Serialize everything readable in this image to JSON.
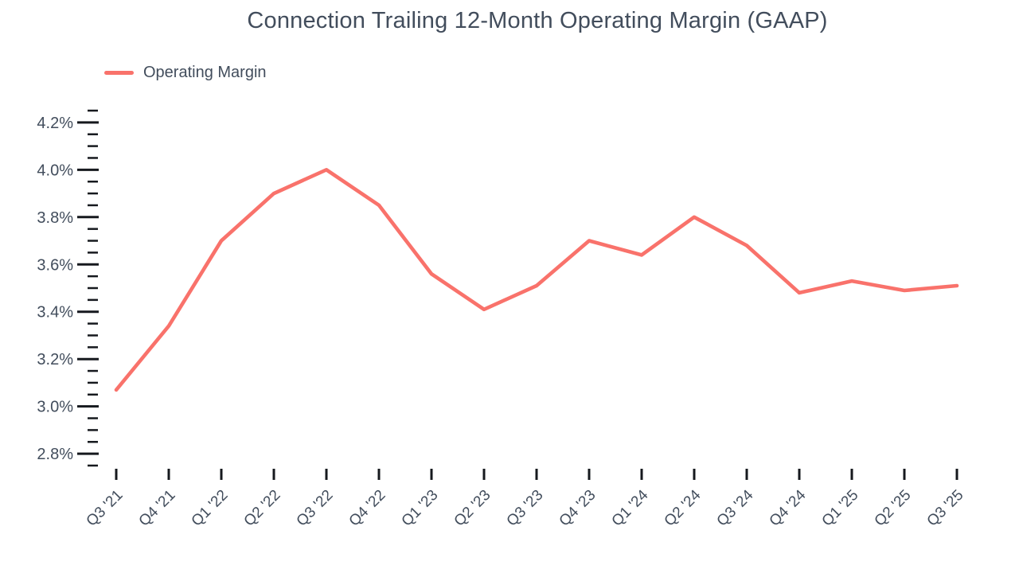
{
  "colors": {
    "line": "#F9726B",
    "text": "#424D5C",
    "tick": "#16191E",
    "background": "#FFFFFF"
  },
  "chart_data": {
    "type": "line",
    "title": "Connection Trailing 12-Month Operating Margin (GAAP)",
    "legend_position": "top-left",
    "grid": false,
    "markers": false,
    "categories": [
      "Q3 '21",
      "Q4 '21",
      "Q1 '22",
      "Q2 '22",
      "Q3 '22",
      "Q4 '22",
      "Q1 '23",
      "Q2 '23",
      "Q3 '23",
      "Q4 '23",
      "Q1 '24",
      "Q2 '24",
      "Q3 '24",
      "Q4 '24",
      "Q1 '25",
      "Q2 '25",
      "Q3 '25"
    ],
    "series": [
      {
        "name": "Operating Margin",
        "color": "#F9726B",
        "values": [
          3.07,
          3.34,
          3.7,
          3.9,
          4.0,
          3.85,
          3.56,
          3.41,
          3.51,
          3.7,
          3.64,
          3.8,
          3.68,
          3.48,
          3.53,
          3.49,
          3.51
        ]
      }
    ],
    "y_axis": {
      "min": 2.75,
      "max": 4.25,
      "major_step": 0.2,
      "minor_step": 0.05,
      "label_suffix": "%",
      "labeled_ticks": [
        "2.8%",
        "3.0%",
        "3.2%",
        "3.4%",
        "3.6%",
        "3.8%",
        "4.0%",
        "4.2%"
      ]
    },
    "x_axis": {
      "label_rotation": -45
    }
  }
}
